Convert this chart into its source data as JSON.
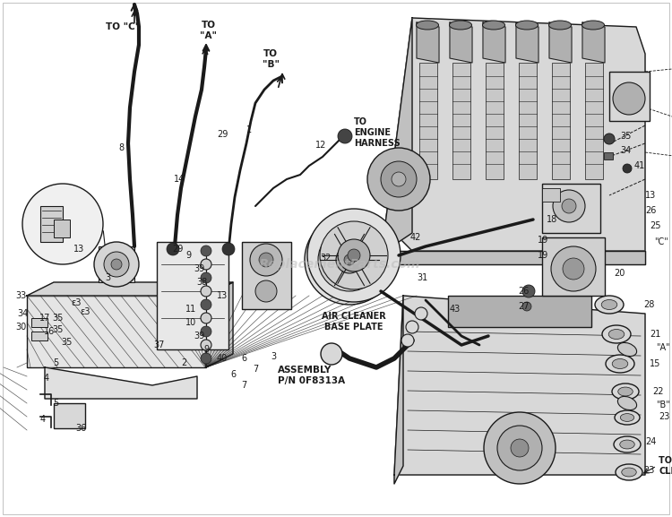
{
  "bg_color": "#ffffff",
  "fg_color": "#1a1a1a",
  "gray_light": "#d8d8d8",
  "gray_mid": "#b0b0b0",
  "gray_dark": "#888888",
  "watermark": "eReplacementParts.com",
  "watermark_color": "#bbbbbb",
  "assembly_label": "ASSEMBLY\nP/N 0F8313A",
  "air_cleaner_label": "AIR CLEANER\nBASE PLATE",
  "to_engine_harness": "TO\nENGINE\nHARNESS",
  "to_air_cleaner": "TO AIR\nCLEANER"
}
